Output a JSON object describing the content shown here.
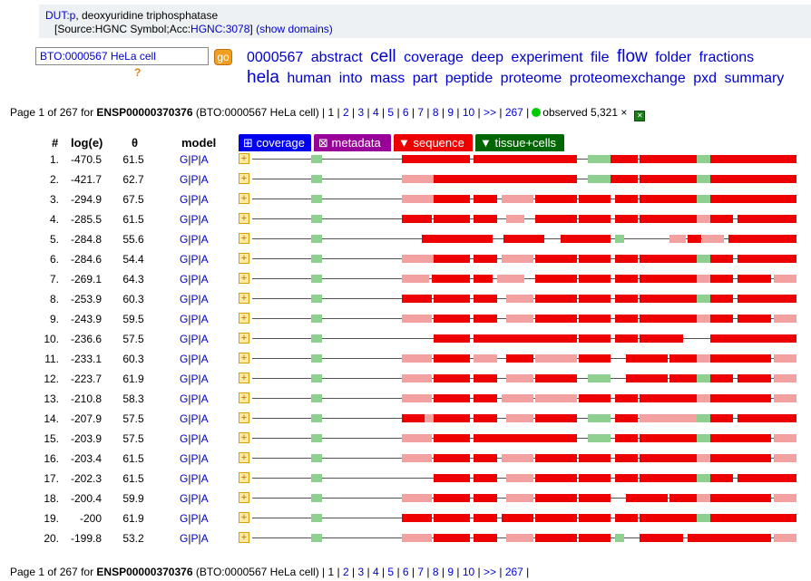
{
  "protein": {
    "gene_link": "DUT:p",
    "description": ", deoxyuridine triphosphatase",
    "source_prefix": "[Source:HGNC Symbol;Acc:",
    "acc_link": "HGNC:3078",
    "source_suffix": "]",
    "domains_link": "(show domains)"
  },
  "search": {
    "value": "BTO:0000567 HeLa cell",
    "go_label": "go",
    "help": "?"
  },
  "cloud": [
    {
      "w": "0000567",
      "big": false
    },
    {
      "w": "abstract",
      "big": false
    },
    {
      "w": "cell",
      "big": true
    },
    {
      "w": "coverage",
      "big": false
    },
    {
      "w": "deep",
      "big": false
    },
    {
      "w": "experiment",
      "big": false
    },
    {
      "w": "file",
      "big": false
    },
    {
      "w": "flow",
      "big": true
    },
    {
      "w": "folder",
      "big": false
    },
    {
      "w": "fractions",
      "big": false
    },
    {
      "w": "hela",
      "big": true
    },
    {
      "w": "human",
      "big": false
    },
    {
      "w": "into",
      "big": false
    },
    {
      "w": "mass",
      "big": false
    },
    {
      "w": "part",
      "big": false
    },
    {
      "w": "peptide",
      "big": false
    },
    {
      "w": "proteome",
      "big": false
    },
    {
      "w": "proteomexchange",
      "big": false
    },
    {
      "w": "pxd",
      "big": false
    },
    {
      "w": "summary",
      "big": false
    }
  ],
  "pager": {
    "page_text": "Page 1 of 267 for ",
    "protein_id": "ENSP00000370376",
    "context": " (BTO:0000567 HeLa cell) | ",
    "current": "1",
    "pages": [
      "2",
      "3",
      "4",
      "5",
      "6",
      "7",
      "8",
      "9",
      "10",
      ">>",
      "267"
    ],
    "observed": "observed 5,321 ×"
  },
  "headers": {
    "num": "#",
    "loge": "log(e)",
    "theta": "θ",
    "model": "model"
  },
  "tabs": {
    "coverage": "⊞ coverage",
    "metadata": "⊠ metadata",
    "sequence": "▼ sequence",
    "tissue": "▼ tissue+cells"
  },
  "model_links": {
    "g": "G",
    "p": "P",
    "a": "A",
    "sep": "|"
  },
  "expand_symbol": "+",
  "colors": {
    "strong": "#ee0000",
    "light": "#f2a0a0",
    "green": "#8fcf8f",
    "line": "#555555"
  },
  "rows": [
    {
      "num": "1.",
      "loge": "-470.5",
      "theta": "61.5"
    },
    {
      "num": "2.",
      "loge": "-421.7",
      "theta": "62.7"
    },
    {
      "num": "3.",
      "loge": "-294.9",
      "theta": "67.5"
    },
    {
      "num": "4.",
      "loge": "-285.5",
      "theta": "61.5"
    },
    {
      "num": "5.",
      "loge": "-284.8",
      "theta": "55.6"
    },
    {
      "num": "6.",
      "loge": "-284.6",
      "theta": "54.4"
    },
    {
      "num": "7.",
      "loge": "-269.1",
      "theta": "64.3"
    },
    {
      "num": "8.",
      "loge": "-253.9",
      "theta": "60.3"
    },
    {
      "num": "9.",
      "loge": "-243.9",
      "theta": "59.5"
    },
    {
      "num": "10.",
      "loge": "-236.6",
      "theta": "57.5"
    },
    {
      "num": "11.",
      "loge": "-233.1",
      "theta": "60.3"
    },
    {
      "num": "12.",
      "loge": "-223.7",
      "theta": "61.9"
    },
    {
      "num": "13.",
      "loge": "-210.8",
      "theta": "58.3"
    },
    {
      "num": "14.",
      "loge": "-207.9",
      "theta": "57.5"
    },
    {
      "num": "15.",
      "loge": "-203.9",
      "theta": "57.5"
    },
    {
      "num": "16.",
      "loge": "-203.4",
      "theta": "61.5"
    },
    {
      "num": "17.",
      "loge": "-202.3",
      "theta": "61.5"
    },
    {
      "num": "18.",
      "loge": "-200.4",
      "theta": "59.9"
    },
    {
      "num": "19.",
      "loge": "-200",
      "theta": "61.9"
    },
    {
      "num": "20.",
      "loge": "-199.8",
      "theta": "53.2"
    }
  ]
}
